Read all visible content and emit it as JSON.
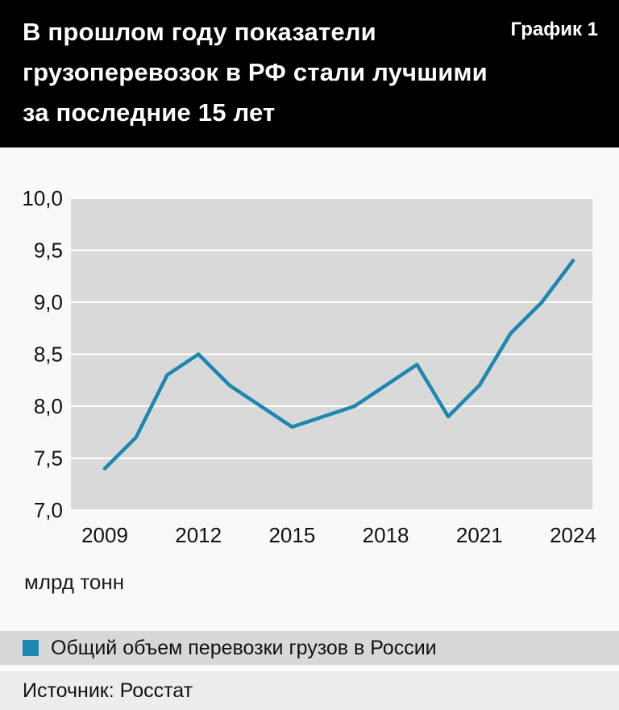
{
  "header": {
    "title_lines": [
      "В прошлом году показатели",
      "грузоперевозок в РФ стали лучшими",
      "за последние 15 лет"
    ],
    "chart_label": "График 1"
  },
  "chart_data": {
    "type": "line",
    "title": "Общий объем перевозки грузов в России",
    "x": [
      2009,
      2010,
      2011,
      2012,
      2013,
      2014,
      2015,
      2016,
      2017,
      2018,
      2019,
      2020,
      2021,
      2022,
      2023,
      2024
    ],
    "values": [
      7.4,
      7.7,
      8.3,
      8.5,
      8.2,
      8.0,
      7.8,
      7.9,
      8.0,
      8.2,
      8.4,
      7.9,
      8.2,
      8.7,
      9.0,
      9.4
    ],
    "ylim": [
      7.0,
      10.0
    ],
    "yticks": [
      7.0,
      7.5,
      8.0,
      8.5,
      9.0,
      9.5,
      10.0
    ],
    "ytick_labels": [
      "7,0",
      "7,5",
      "8,0",
      "8,5",
      "9,0",
      "9,5",
      "10,0"
    ],
    "xtick_years": [
      2009,
      2012,
      2015,
      2018,
      2021,
      2024
    ],
    "xtick_labels": [
      "2009",
      "2012",
      "2015",
      "2018",
      "2021",
      "2024"
    ],
    "grid": "on",
    "legend_position": "bottom",
    "line_color": "#1d87b0",
    "plot_bg": "#d9d9d9",
    "unit_label": "млрд тонн"
  },
  "legend": {
    "swatch_color": "#1d87b0",
    "label": "Общий объем перевозки грузов в России"
  },
  "source": {
    "text": "Источник: Росстат"
  }
}
